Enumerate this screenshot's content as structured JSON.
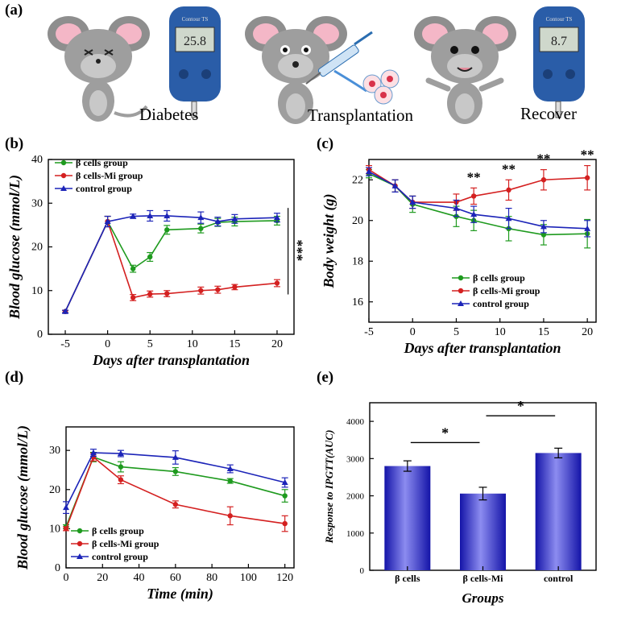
{
  "panels": {
    "a": "(a)",
    "b": "(b)",
    "c": "(c)",
    "d": "(d)",
    "e": "(e)"
  },
  "illustration": {
    "captions": [
      "Diabetes",
      "Transplantation",
      "Recover"
    ],
    "meter_brand": "Contour TS",
    "meter_readings": [
      "25.8",
      "8.7"
    ]
  },
  "colors": {
    "green": "#1e9a1e",
    "red": "#d42020",
    "blue": "#1c24b8"
  },
  "chart_data": [
    {
      "id": "b",
      "type": "line",
      "xlabel": "Days after transplantation",
      "ylabel": "Blood glucose (mmol/L)",
      "xlim": [
        -7,
        22
      ],
      "ylim": [
        0,
        40
      ],
      "xticks": [
        -5,
        0,
        5,
        10,
        15,
        20
      ],
      "yticks": [
        0,
        10,
        20,
        30,
        40
      ],
      "legend": "top-left",
      "series": [
        {
          "name": "β cells group",
          "color": "green",
          "x": [
            -5,
            0,
            3,
            5,
            7,
            11,
            13,
            15,
            20
          ],
          "y": [
            5.2,
            25.8,
            15.0,
            17.7,
            23.9,
            24.2,
            25.6,
            25.8,
            26.0
          ],
          "err": [
            0.3,
            1.2,
            0.8,
            1.0,
            1.0,
            1.0,
            0.9,
            1.0,
            1.0
          ]
        },
        {
          "name": "β cells-Mi group",
          "color": "red",
          "x": [
            -5,
            0,
            3,
            5,
            7,
            11,
            13,
            15,
            20
          ],
          "y": [
            5.2,
            25.8,
            8.4,
            9.2,
            9.3,
            10.0,
            10.2,
            10.8,
            11.7
          ],
          "err": [
            0.3,
            1.2,
            0.7,
            0.7,
            0.7,
            0.8,
            0.8,
            0.6,
            0.8
          ]
        },
        {
          "name": "control group",
          "color": "blue",
          "x": [
            -5,
            0,
            3,
            5,
            7,
            11,
            13,
            15,
            20
          ],
          "y": [
            5.2,
            25.8,
            27.0,
            27.1,
            27.1,
            26.7,
            25.8,
            26.4,
            26.7
          ],
          "err": [
            0.3,
            1.2,
            0.5,
            1.2,
            1.2,
            1.3,
            1.0,
            1.0,
            1.0
          ]
        }
      ],
      "annotation": "***"
    },
    {
      "id": "c",
      "type": "line",
      "xlabel": "Days after transplantation",
      "ylabel": "Body weight (g)",
      "xlim": [
        -5,
        21
      ],
      "ylim": [
        15,
        23
      ],
      "xticks": [
        -5,
        0,
        5,
        10,
        15,
        20
      ],
      "yticks": [
        16,
        18,
        20,
        22
      ],
      "legend": "bottom-right",
      "series": [
        {
          "name": "β cells group",
          "color": "green",
          "x": [
            -5,
            -2,
            0,
            5,
            7,
            11,
            15,
            20
          ],
          "y": [
            22.3,
            21.7,
            20.8,
            20.2,
            20.0,
            19.6,
            19.3,
            19.35
          ],
          "err": [
            0.2,
            0.3,
            0.4,
            0.5,
            0.5,
            0.6,
            0.5,
            0.7
          ]
        },
        {
          "name": "β cells-Mi group",
          "color": "red",
          "x": [
            -5,
            -2,
            0,
            5,
            7,
            11,
            15,
            20
          ],
          "y": [
            22.5,
            21.7,
            20.9,
            20.9,
            21.2,
            21.5,
            22.0,
            22.1
          ],
          "err": [
            0.2,
            0.3,
            0.3,
            0.4,
            0.4,
            0.5,
            0.5,
            0.6
          ]
        },
        {
          "name": "control group",
          "color": "blue",
          "x": [
            -5,
            -2,
            0,
            5,
            7,
            11,
            15,
            20
          ],
          "y": [
            22.4,
            21.7,
            20.9,
            20.6,
            20.3,
            20.1,
            19.7,
            19.6
          ],
          "err": [
            0.2,
            0.3,
            0.3,
            0.4,
            0.4,
            0.5,
            0.3,
            0.4
          ]
        }
      ],
      "annotations": [
        {
          "x": 7,
          "text": "**"
        },
        {
          "x": 11,
          "text": "**"
        },
        {
          "x": 15,
          "text": "**"
        },
        {
          "x": 20,
          "text": "**"
        }
      ]
    },
    {
      "id": "d",
      "type": "line",
      "xlabel": "Time (min)",
      "ylabel": "Blood glucose (mmol/L)",
      "xlim": [
        0,
        125
      ],
      "ylim": [
        0,
        36
      ],
      "xticks": [
        0,
        20,
        40,
        60,
        80,
        100,
        120
      ],
      "yticks": [
        0,
        10,
        20,
        30
      ],
      "legend": "bottom-left",
      "series": [
        {
          "name": "β cells group",
          "color": "green",
          "x": [
            0,
            15,
            30,
            60,
            90,
            120
          ],
          "y": [
            10.5,
            28.3,
            25.8,
            24.6,
            22.2,
            18.4
          ],
          "err": [
            0.5,
            1.2,
            1.3,
            1.0,
            0.6,
            1.6
          ]
        },
        {
          "name": "β cells-Mi group",
          "color": "red",
          "x": [
            0,
            15,
            30,
            60,
            90,
            120
          ],
          "y": [
            10.0,
            28.3,
            22.5,
            16.2,
            13.3,
            11.3
          ],
          "err": [
            0.5,
            1.0,
            1.0,
            0.9,
            2.3,
            2.0
          ]
        },
        {
          "name": "control group",
          "color": "blue",
          "x": [
            0,
            15,
            30,
            60,
            90,
            120
          ],
          "y": [
            15.4,
            29.4,
            29.2,
            28.2,
            25.3,
            21.8
          ],
          "err": [
            1.5,
            0.9,
            0.8,
            1.7,
            1.0,
            1.2
          ]
        }
      ]
    },
    {
      "id": "e",
      "type": "bar",
      "xlabel": "Groups",
      "ylabel": "Response to IPGTT(AUC)",
      "ylim": [
        0,
        4500
      ],
      "yticks": [
        0,
        1000,
        2000,
        3000,
        4000
      ],
      "categories": [
        "β cells",
        "β cells-Mi",
        "control"
      ],
      "values": [
        2800,
        2060,
        3150
      ],
      "err": [
        140,
        170,
        130
      ],
      "annotations": [
        {
          "between": [
            0,
            1
          ],
          "text": "*"
        },
        {
          "between": [
            1,
            2
          ],
          "text": "*"
        }
      ]
    }
  ]
}
